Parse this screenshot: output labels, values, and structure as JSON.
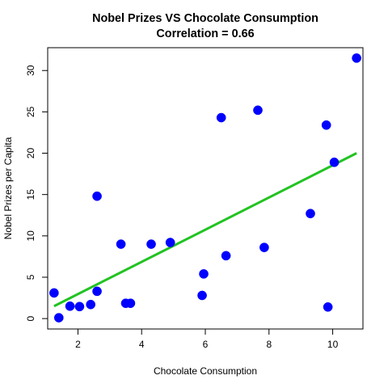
{
  "chart_data": {
    "type": "scatter",
    "title": "Nobel Prizes VS Chocolate Consumption",
    "subtitle": "Correlation = 0.66",
    "xlabel": "Chocolate Consumption",
    "ylabel": "Nobel Prizes per Capita",
    "xlim": [
      1.05,
      10.95
    ],
    "ylim": [
      -1.26,
      32.76
    ],
    "x_ticks": [
      2,
      4,
      6,
      8,
      10
    ],
    "y_ticks": [
      0,
      5,
      10,
      15,
      20,
      25,
      30
    ],
    "x_tick_labels": [
      "2",
      "4",
      "6",
      "8",
      "10"
    ],
    "y_tick_labels": [
      "0",
      "5",
      "10",
      "15",
      "20",
      "25",
      "30"
    ],
    "grid": false,
    "legend": "none",
    "point_color": "#0000ff",
    "trend_color": "#22c322",
    "points": [
      {
        "x": 1.25,
        "y": 3.1
      },
      {
        "x": 1.4,
        "y": 0.1
      },
      {
        "x": 1.75,
        "y": 1.5
      },
      {
        "x": 2.05,
        "y": 1.45
      },
      {
        "x": 2.4,
        "y": 1.7
      },
      {
        "x": 2.6,
        "y": 3.3
      },
      {
        "x": 2.6,
        "y": 14.8
      },
      {
        "x": 3.35,
        "y": 9.0
      },
      {
        "x": 3.5,
        "y": 1.85
      },
      {
        "x": 3.65,
        "y": 1.85
      },
      {
        "x": 4.3,
        "y": 9.0
      },
      {
        "x": 4.9,
        "y": 9.2
      },
      {
        "x": 5.9,
        "y": 2.8
      },
      {
        "x": 5.95,
        "y": 5.4
      },
      {
        "x": 6.5,
        "y": 24.3
      },
      {
        "x": 6.65,
        "y": 7.6
      },
      {
        "x": 7.65,
        "y": 25.2
      },
      {
        "x": 7.85,
        "y": 8.6
      },
      {
        "x": 9.3,
        "y": 12.7
      },
      {
        "x": 9.8,
        "y": 23.4
      },
      {
        "x": 9.85,
        "y": 1.4
      },
      {
        "x": 10.05,
        "y": 18.9
      },
      {
        "x": 10.75,
        "y": 31.5
      }
    ],
    "trend_line": {
      "x": [
        1.25,
        10.75
      ],
      "y": [
        1.5,
        20.0
      ]
    }
  }
}
